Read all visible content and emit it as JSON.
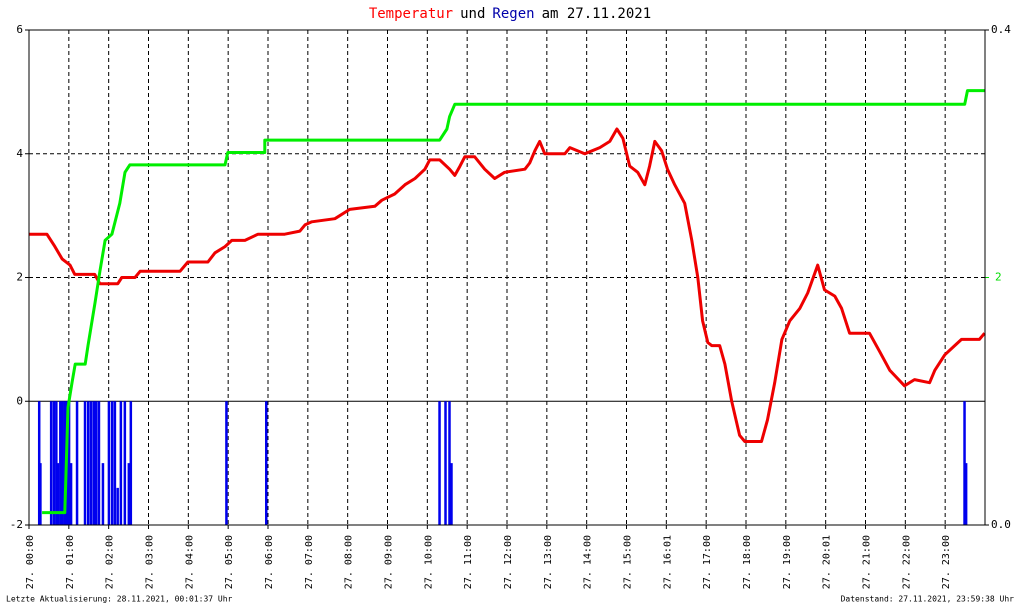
{
  "chart_data": {
    "type": "line",
    "title_parts": [
      {
        "text": "Temperatur",
        "color": "#ff0000"
      },
      {
        "text": "und",
        "color": "#000000"
      },
      {
        "text": "Regen",
        "color": "#0000aa"
      },
      {
        "text": "am 27.11.2021",
        "color": "#000000"
      }
    ],
    "xlim": [
      0,
      24
    ],
    "xticks": [
      {
        "value": 0,
        "label": "27. 00:00"
      },
      {
        "value": 1,
        "label": "27. 01:00"
      },
      {
        "value": 2,
        "label": "27. 02:00"
      },
      {
        "value": 3,
        "label": "27. 03:00"
      },
      {
        "value": 4,
        "label": "27. 04:00"
      },
      {
        "value": 5,
        "label": "27. 05:00"
      },
      {
        "value": 6,
        "label": "27. 06:00"
      },
      {
        "value": 7,
        "label": "27. 07:00"
      },
      {
        "value": 8,
        "label": "27. 08:00"
      },
      {
        "value": 9,
        "label": "27. 09:00"
      },
      {
        "value": 10,
        "label": "27. 10:00"
      },
      {
        "value": 11,
        "label": "27. 11:00"
      },
      {
        "value": 12,
        "label": "27. 12:00"
      },
      {
        "value": 13,
        "label": "27. 13:00"
      },
      {
        "value": 14,
        "label": "27. 14:00"
      },
      {
        "value": 15,
        "label": "27. 15:00"
      },
      {
        "value": 16,
        "label": "27. 16:01"
      },
      {
        "value": 17,
        "label": "27. 17:00"
      },
      {
        "value": 18,
        "label": "27. 18:00"
      },
      {
        "value": 19,
        "label": "27. 19:00"
      },
      {
        "value": 20,
        "label": "27. 20:01"
      },
      {
        "value": 21,
        "label": "27. 21:00"
      },
      {
        "value": 22,
        "label": "27. 22:00"
      },
      {
        "value": 23,
        "label": "27. 23:00"
      }
    ],
    "ylim": [
      -2,
      6
    ],
    "yticks": [
      -2,
      0,
      2,
      4,
      6
    ],
    "y2lim": [
      0,
      0.4
    ],
    "y2ticks": [
      {
        "value": 0,
        "label": "0.0"
      },
      {
        "value": 0.4,
        "label": "0.4"
      }
    ],
    "y3lim": [
      0,
      4
    ],
    "y3ticks": [
      2
    ],
    "y3color": "#00dd00",
    "grid": true,
    "series": [
      {
        "color": "#ee0000",
        "axis": "y",
        "style": "line",
        "x": [
          0,
          0.45,
          0.65,
          0.83,
          1.03,
          1.15,
          1.65,
          1.78,
          2.23,
          2.33,
          2.66,
          2.79,
          3.79,
          3.99,
          4.49,
          4.67,
          4.92,
          5.09,
          5.42,
          5.75,
          6.42,
          6.8,
          6.93,
          7.1,
          7.68,
          8.05,
          8.68,
          8.86,
          9.18,
          9.44,
          9.69,
          9.94,
          10.06,
          10.31,
          10.56,
          10.69,
          10.82,
          10.94,
          11.19,
          11.44,
          11.69,
          11.94,
          12.45,
          12.57,
          12.7,
          12.82,
          12.95,
          13.45,
          13.58,
          13.95,
          14.33,
          14.58,
          14.76,
          14.91,
          15.08,
          15.28,
          15.46,
          15.58,
          15.71,
          15.88,
          16.03,
          16.21,
          16.46,
          16.64,
          16.79,
          16.91,
          17.04,
          17.14,
          17.34,
          17.47,
          17.64,
          17.84,
          17.97,
          18.39,
          18.54,
          18.72,
          18.9,
          19.1,
          19.35,
          19.55,
          19.8,
          19.97,
          20.23,
          20.4,
          20.6,
          21.1,
          21.36,
          21.61,
          21.98,
          22.23,
          22.61,
          22.74,
          22.99,
          23.24,
          23.41,
          23.86,
          23.99
        ],
        "values": [
          2.7,
          2.7,
          2.5,
          2.3,
          2.2,
          2.05,
          2.05,
          1.9,
          1.9,
          2.0,
          2.0,
          2.1,
          2.1,
          2.25,
          2.25,
          2.4,
          2.5,
          2.6,
          2.6,
          2.7,
          2.7,
          2.75,
          2.85,
          2.9,
          2.95,
          3.1,
          3.15,
          3.25,
          3.35,
          3.5,
          3.6,
          3.75,
          3.9,
          3.9,
          3.75,
          3.65,
          3.8,
          3.95,
          3.95,
          3.75,
          3.6,
          3.7,
          3.75,
          3.85,
          4.05,
          4.2,
          4.0,
          4.0,
          4.1,
          4.0,
          4.1,
          4.2,
          4.4,
          4.25,
          3.8,
          3.7,
          3.5,
          3.8,
          4.2,
          4.05,
          3.75,
          3.5,
          3.2,
          2.6,
          2.0,
          1.3,
          0.95,
          0.9,
          0.9,
          0.6,
          0.0,
          -0.55,
          -0.65,
          -0.65,
          -0.3,
          0.3,
          1.0,
          1.3,
          1.5,
          1.75,
          2.2,
          1.8,
          1.7,
          1.5,
          1.1,
          1.1,
          0.8,
          0.5,
          0.25,
          0.35,
          0.3,
          0.5,
          0.75,
          0.9,
          1.0,
          1.0,
          1.1
        ]
      },
      {
        "color": "#00ee00",
        "axis": "y3",
        "style": "line",
        "x": [
          0.33,
          0.53,
          0.9,
          0.98,
          1.08,
          1.16,
          1.41,
          1.48,
          1.66,
          1.78,
          1.91,
          2.08,
          2.28,
          2.41,
          2.53,
          4.92,
          4.99,
          5.92,
          5.92,
          10.31,
          10.49,
          10.56,
          10.69,
          23.49,
          23.56,
          23.99
        ],
        "values": [
          0.1,
          0.1,
          0.1,
          0.95,
          1.15,
          1.3,
          1.3,
          1.45,
          1.8,
          2.05,
          2.3,
          2.35,
          2.6,
          2.85,
          2.91,
          2.91,
          3.01,
          3.01,
          3.11,
          3.11,
          3.2,
          3.3,
          3.4,
          3.4,
          3.51,
          3.51
        ]
      },
      {
        "color": "#0000ee",
        "axis": "y2",
        "style": "bar",
        "x": [
          0.25,
          0.28,
          0.55,
          0.62,
          0.68,
          0.72,
          0.78,
          0.84,
          0.9,
          0.95,
          1.0,
          1.05,
          1.2,
          1.4,
          1.48,
          1.55,
          1.62,
          1.68,
          1.75,
          1.85,
          2.0,
          2.08,
          2.15,
          2.22,
          2.3,
          2.4,
          2.5,
          2.55,
          4.95,
          5.95,
          10.3,
          10.45,
          10.55,
          10.6,
          23.48,
          23.52
        ],
        "values": [
          0.1,
          0.05,
          0.1,
          0.1,
          0.1,
          0.05,
          0.1,
          0.1,
          0.1,
          0.1,
          0.1,
          0.05,
          0.1,
          0.1,
          0.1,
          0.1,
          0.1,
          0.1,
          0.1,
          0.05,
          0.1,
          0.1,
          0.1,
          0.03,
          0.1,
          0.1,
          0.05,
          0.1,
          0.1,
          0.1,
          0.1,
          0.1,
          0.1,
          0.05,
          0.1,
          0.05
        ]
      }
    ],
    "footer_left": "Letzte Aktualisierung: 28.11.2021, 00:01:37 Uhr",
    "footer_right": "Datenstand: 27.11.2021, 23:59:38 Uhr"
  }
}
